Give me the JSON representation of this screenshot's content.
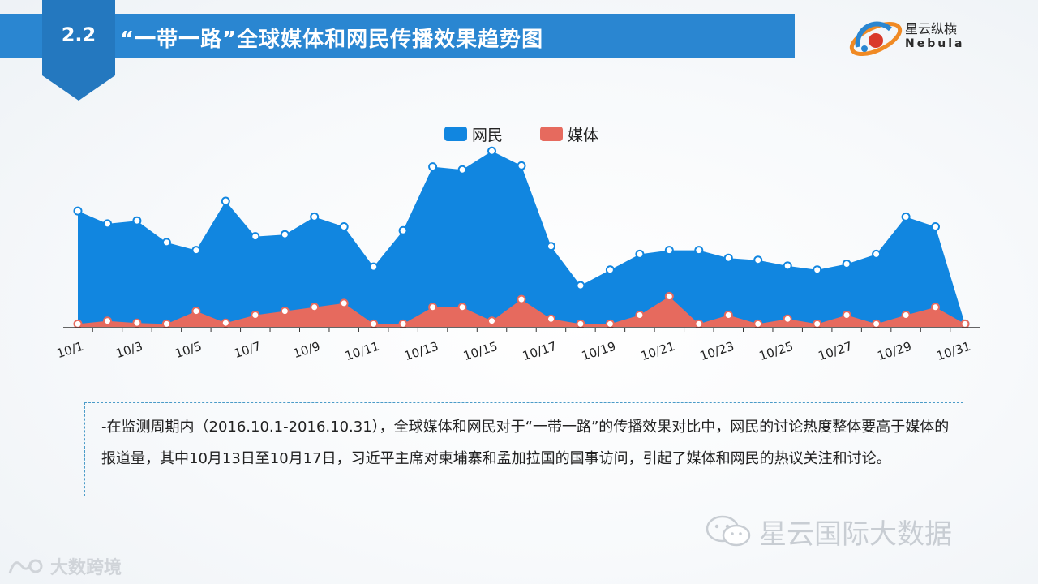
{
  "header": {
    "section_number": "2.2",
    "title": "“一带一路”全球媒体和网民传播效果趋势图"
  },
  "logo": {
    "name_cn": "星云纵横",
    "name_en": "Nebula"
  },
  "colors": {
    "netizen": "#1186e0",
    "media": "#e66a5e",
    "header": "#2a86d1"
  },
  "chart_data": {
    "type": "area",
    "legend_position": "top-center",
    "grid": false,
    "categories": [
      "10/1",
      "10/2",
      "10/3",
      "10/4",
      "10/5",
      "10/6",
      "10/7",
      "10/8",
      "10/9",
      "10/10",
      "10/11",
      "10/12",
      "10/13",
      "10/14",
      "10/15",
      "10/16",
      "10/17",
      "10/18",
      "10/19",
      "10/20",
      "10/21",
      "10/22",
      "10/23",
      "10/24",
      "10/25",
      "10/26",
      "10/27",
      "10/28",
      "10/29",
      "10/30",
      "10/31"
    ],
    "x_tick_labels": [
      "10/1",
      "10/3",
      "10/5",
      "10/7",
      "10/9",
      "10/11",
      "10/13",
      "10/15",
      "10/17",
      "10/19",
      "10/21",
      "10/23",
      "10/25",
      "10/27",
      "10/29",
      "10/31"
    ],
    "series": [
      {
        "name": "网民",
        "values": [
          118,
          105,
          108,
          86,
          78,
          128,
          92,
          94,
          112,
          102,
          61,
          98,
          163,
          160,
          179,
          164,
          82,
          42,
          58,
          74,
          78,
          78,
          70,
          68,
          62,
          58,
          64,
          74,
          112,
          102,
          3
        ]
      },
      {
        "name": "媒体",
        "values": [
          3,
          6,
          4,
          3,
          16,
          4,
          12,
          16,
          20,
          24,
          3,
          3,
          20,
          20,
          6,
          28,
          8,
          3,
          3,
          12,
          31,
          3,
          12,
          3,
          8,
          3,
          12,
          3,
          12,
          20,
          3
        ]
      }
    ],
    "ylim": [
      0,
      185
    ]
  },
  "note": {
    "text": "-在监测周期内（2016.10.1-2016.10.31），全球媒体和网民对于“一带一路”的传播效果对比中，网民的讨论热度整体要高于媒体的报道量，其中10月13日至10月17日，习近平主席对柬埔寨和孟加拉国的国事访问，引起了媒体和网民的热议关注和讨论。"
  },
  "watermark": {
    "text": "星云国际大数据",
    "icon": "wechat-icon"
  },
  "footer": {
    "text": "大数跨境",
    "icon": "brand-mark-icon"
  }
}
